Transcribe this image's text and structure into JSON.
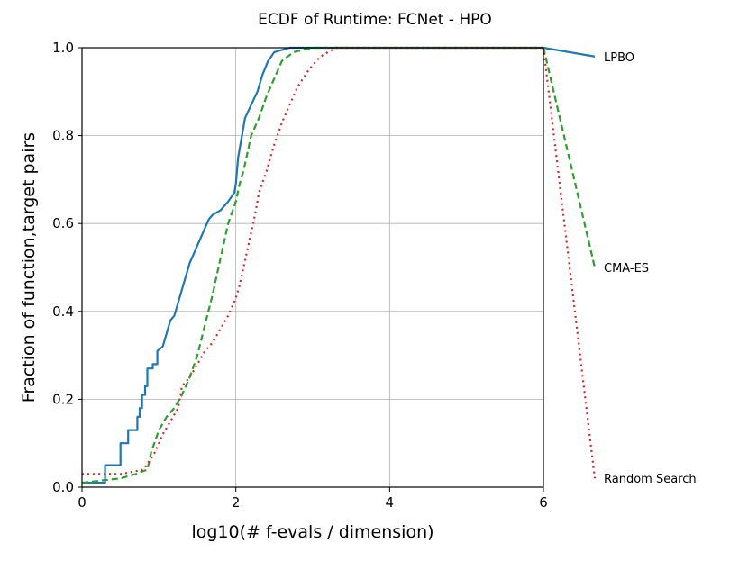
{
  "chart_data": {
    "type": "line",
    "title": "ECDF of Runtime: FCNet - HPO",
    "xlabel": "log10(# f-evals / dimension)",
    "ylabel": "Fraction of function,target pairs",
    "xlim": [
      0,
      6
    ],
    "ylim": [
      0,
      1.0
    ],
    "xticks": [
      "0",
      "2",
      "4",
      "6"
    ],
    "yticks": [
      "0.0",
      "0.2",
      "0.4",
      "0.6",
      "0.8",
      "1.0"
    ],
    "grid": true,
    "legend": "right, outside plot (series names at line ends)",
    "series": [
      {
        "name": "LPBO",
        "color": "#1f77b4",
        "style": "solid",
        "points": [
          [
            0,
            0.01
          ],
          [
            0.3,
            0.01
          ],
          [
            0.3,
            0.05
          ],
          [
            0.5,
            0.05
          ],
          [
            0.5,
            0.1
          ],
          [
            0.6,
            0.1
          ],
          [
            0.6,
            0.13
          ],
          [
            0.72,
            0.13
          ],
          [
            0.72,
            0.16
          ],
          [
            0.75,
            0.16
          ],
          [
            0.75,
            0.18
          ],
          [
            0.78,
            0.18
          ],
          [
            0.78,
            0.21
          ],
          [
            0.82,
            0.21
          ],
          [
            0.82,
            0.23
          ],
          [
            0.85,
            0.23
          ],
          [
            0.85,
            0.27
          ],
          [
            0.92,
            0.27
          ],
          [
            0.92,
            0.28
          ],
          [
            0.98,
            0.28
          ],
          [
            0.98,
            0.31
          ],
          [
            1.05,
            0.32
          ],
          [
            1.1,
            0.35
          ],
          [
            1.15,
            0.38
          ],
          [
            1.2,
            0.39
          ],
          [
            1.25,
            0.42
          ],
          [
            1.3,
            0.45
          ],
          [
            1.35,
            0.48
          ],
          [
            1.4,
            0.51
          ],
          [
            1.45,
            0.53
          ],
          [
            1.5,
            0.55
          ],
          [
            1.55,
            0.57
          ],
          [
            1.6,
            0.59
          ],
          [
            1.65,
            0.61
          ],
          [
            1.7,
            0.62
          ],
          [
            1.8,
            0.63
          ],
          [
            1.9,
            0.65
          ],
          [
            1.98,
            0.67
          ],
          [
            2.0,
            0.69
          ],
          [
            2.03,
            0.75
          ],
          [
            2.08,
            0.8
          ],
          [
            2.12,
            0.84
          ],
          [
            2.2,
            0.87
          ],
          [
            2.28,
            0.9
          ],
          [
            2.35,
            0.94
          ],
          [
            2.42,
            0.97
          ],
          [
            2.5,
            0.99
          ],
          [
            2.7,
            1.0
          ],
          [
            6,
            1.0
          ]
        ],
        "end_label_y": 0.98
      },
      {
        "name": "CMA-ES",
        "color": "#2ca02c",
        "style": "dashed",
        "points": [
          [
            0,
            0.01
          ],
          [
            0.5,
            0.02
          ],
          [
            0.7,
            0.03
          ],
          [
            0.85,
            0.04
          ],
          [
            0.9,
            0.08
          ],
          [
            1.0,
            0.13
          ],
          [
            1.1,
            0.16
          ],
          [
            1.2,
            0.18
          ],
          [
            1.3,
            0.21
          ],
          [
            1.4,
            0.25
          ],
          [
            1.5,
            0.3
          ],
          [
            1.6,
            0.37
          ],
          [
            1.7,
            0.44
          ],
          [
            1.75,
            0.48
          ],
          [
            1.8,
            0.52
          ],
          [
            1.85,
            0.56
          ],
          [
            1.9,
            0.6
          ],
          [
            2.0,
            0.65
          ],
          [
            2.05,
            0.69
          ],
          [
            2.1,
            0.72
          ],
          [
            2.15,
            0.76
          ],
          [
            2.2,
            0.8
          ],
          [
            2.3,
            0.84
          ],
          [
            2.4,
            0.89
          ],
          [
            2.5,
            0.93
          ],
          [
            2.6,
            0.97
          ],
          [
            2.75,
            0.99
          ],
          [
            3.0,
            1.0
          ],
          [
            6,
            1.0
          ]
        ],
        "end_label_y": 0.5
      },
      {
        "name": "Random Search",
        "color": "#d62728",
        "style": "dotted",
        "points": [
          [
            0,
            0.03
          ],
          [
            0.5,
            0.03
          ],
          [
            0.8,
            0.04
          ],
          [
            0.95,
            0.08
          ],
          [
            1.05,
            0.12
          ],
          [
            1.15,
            0.15
          ],
          [
            1.25,
            0.18
          ],
          [
            1.3,
            0.23
          ],
          [
            1.4,
            0.25
          ],
          [
            1.5,
            0.28
          ],
          [
            1.6,
            0.31
          ],
          [
            1.7,
            0.33
          ],
          [
            1.8,
            0.36
          ],
          [
            1.9,
            0.39
          ],
          [
            2.0,
            0.43
          ],
          [
            2.05,
            0.46
          ],
          [
            2.1,
            0.5
          ],
          [
            2.15,
            0.54
          ],
          [
            2.2,
            0.58
          ],
          [
            2.25,
            0.62
          ],
          [
            2.3,
            0.67
          ],
          [
            2.4,
            0.72
          ],
          [
            2.5,
            0.78
          ],
          [
            2.6,
            0.83
          ],
          [
            2.7,
            0.87
          ],
          [
            2.8,
            0.91
          ],
          [
            2.95,
            0.95
          ],
          [
            3.1,
            0.98
          ],
          [
            3.3,
            1.0
          ],
          [
            6,
            1.0
          ]
        ],
        "end_label_y": 0.02
      }
    ]
  }
}
